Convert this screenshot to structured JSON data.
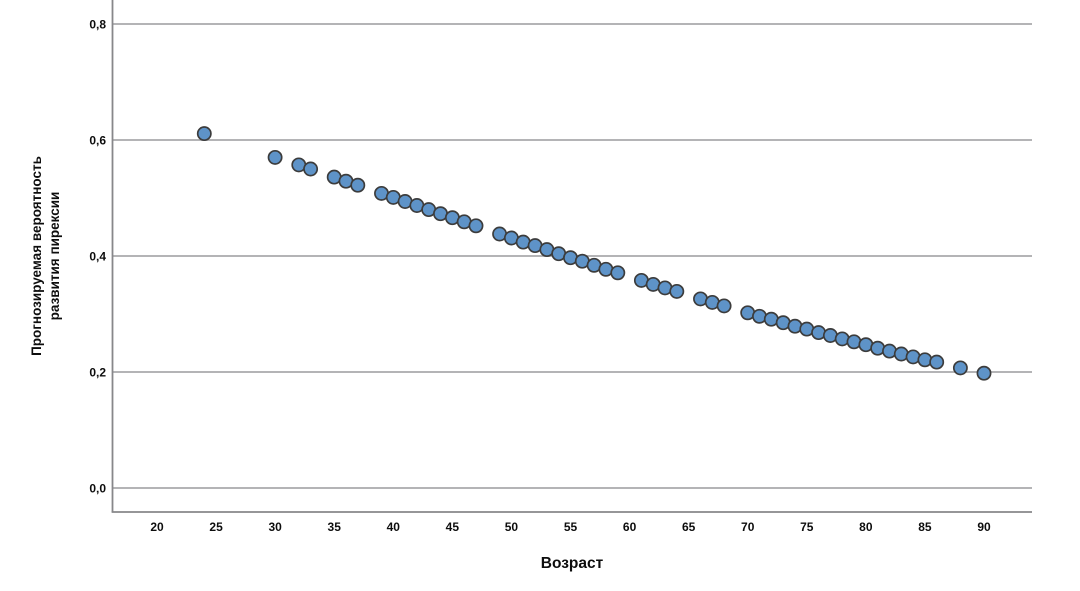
{
  "chart_data": {
    "type": "scatter",
    "title": "",
    "xlabel": "Возраст",
    "ylabel_lines": [
      "Прогнозируемая вероятность",
      "развития пирексии"
    ],
    "legend": null,
    "grid": "horizontal",
    "xlim": [
      16.2,
      94.1
    ],
    "ylim": [
      -0.041,
      0.842
    ],
    "x_ticks": [
      {
        "value": 20,
        "label": "20"
      },
      {
        "value": 25,
        "label": "25"
      },
      {
        "value": 30,
        "label": "30"
      },
      {
        "value": 35,
        "label": "35"
      },
      {
        "value": 40,
        "label": "40"
      },
      {
        "value": 45,
        "label": "45"
      },
      {
        "value": 50,
        "label": "50"
      },
      {
        "value": 55,
        "label": "55"
      },
      {
        "value": 60,
        "label": "60"
      },
      {
        "value": 65,
        "label": "65"
      },
      {
        "value": 70,
        "label": "70"
      },
      {
        "value": 75,
        "label": "75"
      },
      {
        "value": 80,
        "label": "80"
      },
      {
        "value": 85,
        "label": "85"
      },
      {
        "value": 90,
        "label": "90"
      }
    ],
    "y_ticks": [
      {
        "value": 0.0,
        "label": "0,0"
      },
      {
        "value": 0.2,
        "label": "0,2"
      },
      {
        "value": 0.4,
        "label": "0,4"
      },
      {
        "value": 0.6,
        "label": "0,6"
      },
      {
        "value": 0.8,
        "label": "0,8"
      }
    ],
    "points": [
      {
        "age": 24,
        "p": 0.611
      },
      {
        "age": 30,
        "p": 0.57
      },
      {
        "age": 32,
        "p": 0.557
      },
      {
        "age": 33,
        "p": 0.55
      },
      {
        "age": 35,
        "p": 0.536
      },
      {
        "age": 36,
        "p": 0.529
      },
      {
        "age": 37,
        "p": 0.522
      },
      {
        "age": 39,
        "p": 0.508
      },
      {
        "age": 40,
        "p": 0.501
      },
      {
        "age": 41,
        "p": 0.494
      },
      {
        "age": 42,
        "p": 0.487
      },
      {
        "age": 43,
        "p": 0.48
      },
      {
        "age": 44,
        "p": 0.473
      },
      {
        "age": 45,
        "p": 0.466
      },
      {
        "age": 46,
        "p": 0.459
      },
      {
        "age": 47,
        "p": 0.452
      },
      {
        "age": 49,
        "p": 0.438
      },
      {
        "age": 50,
        "p": 0.431
      },
      {
        "age": 51,
        "p": 0.424
      },
      {
        "age": 52,
        "p": 0.418
      },
      {
        "age": 53,
        "p": 0.411
      },
      {
        "age": 54,
        "p": 0.404
      },
      {
        "age": 55,
        "p": 0.397
      },
      {
        "age": 56,
        "p": 0.391
      },
      {
        "age": 57,
        "p": 0.384
      },
      {
        "age": 58,
        "p": 0.377
      },
      {
        "age": 59,
        "p": 0.371
      },
      {
        "age": 61,
        "p": 0.358
      },
      {
        "age": 62,
        "p": 0.351
      },
      {
        "age": 63,
        "p": 0.345
      },
      {
        "age": 64,
        "p": 0.339
      },
      {
        "age": 66,
        "p": 0.326
      },
      {
        "age": 67,
        "p": 0.32
      },
      {
        "age": 68,
        "p": 0.314
      },
      {
        "age": 70,
        "p": 0.302
      },
      {
        "age": 71,
        "p": 0.296
      },
      {
        "age": 72,
        "p": 0.291
      },
      {
        "age": 73,
        "p": 0.285
      },
      {
        "age": 74,
        "p": 0.279
      },
      {
        "age": 75,
        "p": 0.274
      },
      {
        "age": 76,
        "p": 0.268
      },
      {
        "age": 77,
        "p": 0.263
      },
      {
        "age": 78,
        "p": 0.257
      },
      {
        "age": 79,
        "p": 0.252
      },
      {
        "age": 80,
        "p": 0.247
      },
      {
        "age": 81,
        "p": 0.241
      },
      {
        "age": 82,
        "p": 0.236
      },
      {
        "age": 83,
        "p": 0.231
      },
      {
        "age": 84,
        "p": 0.226
      },
      {
        "age": 85,
        "p": 0.221
      },
      {
        "age": 86,
        "p": 0.217
      },
      {
        "age": 88,
        "p": 0.207
      },
      {
        "age": 90,
        "p": 0.198
      }
    ],
    "colors": {
      "point_fill": "#5e93c8",
      "point_stroke": "#3c3c3c",
      "gridline": "#a9a9ac",
      "axis_line": "#87878a",
      "text": "#0d0d0d"
    }
  }
}
